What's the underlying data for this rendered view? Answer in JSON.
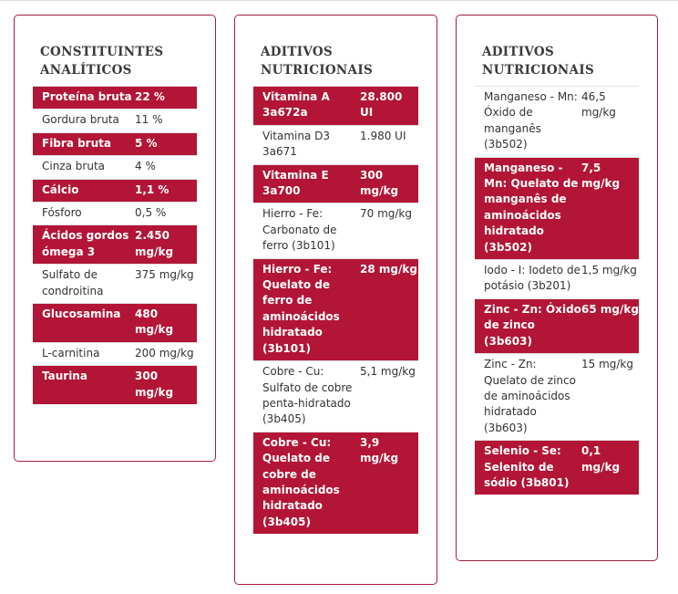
{
  "cards": [
    {
      "title_lines": [
        "CONSTITUINTES",
        "ANALÍTICOS"
      ],
      "rows": [
        {
          "name": "Proteína bruta",
          "value": "22 %",
          "highlight": true
        },
        {
          "name": "Gordura bruta",
          "value": "11 %",
          "highlight": false
        },
        {
          "name": "Fibra bruta",
          "value": "5 %",
          "highlight": true
        },
        {
          "name": "Cinza bruta",
          "value": "4 %",
          "highlight": false
        },
        {
          "name": "Cálcio",
          "value": "1,1 %",
          "highlight": true
        },
        {
          "name": "Fósforo",
          "value": "0,5 %",
          "highlight": false
        },
        {
          "name": "Ácidos gordos ómega 3",
          "value": "2.450 mg/kg",
          "highlight": true
        },
        {
          "name": "Sulfato de condroitina",
          "value": "375 mg/kg",
          "highlight": false
        },
        {
          "name": "Glucosamina",
          "value": "480 mg/kg",
          "highlight": true
        },
        {
          "name": "L-carnitina",
          "value": "200 mg/kg",
          "highlight": false
        },
        {
          "name": "Taurina",
          "value": "300 mg/kg",
          "highlight": true
        }
      ]
    },
    {
      "title_lines": [
        "ADITIVOS",
        "NUTRICIONAIS"
      ],
      "rows": [
        {
          "name": "Vitamina A 3a672a",
          "value": "28.800 UI",
          "highlight": true
        },
        {
          "name": "Vitamina D3 3a671",
          "value": "1.980 UI",
          "highlight": false
        },
        {
          "name": "Vitamina E 3a700",
          "value": "300 mg/kg",
          "highlight": true
        },
        {
          "name": "Hierro - Fe: Carbonato de ferro (3b101)",
          "value": "70 mg/kg",
          "highlight": false
        },
        {
          "name": "Hierro - Fe: Quelato de ferro de aminoácidos hidratado (3b101)",
          "value": "28 mg/kg",
          "highlight": true
        },
        {
          "name": "Cobre - Cu: Sulfato de cobre penta-hidratado (3b405)",
          "value": "5,1 mg/kg",
          "highlight": false
        },
        {
          "name": "Cobre - Cu: Quelato de cobre de aminoácidos hidratado (3b405)",
          "value": "3,9 mg/kg",
          "highlight": true
        }
      ]
    },
    {
      "title_lines": [
        "ADITIVOS",
        "NUTRICIONAIS"
      ],
      "rows": [
        {
          "name": "Manganeso - Mn: Óxido de manganês (3b502)",
          "value": "46,5 mg/kg",
          "highlight": false
        },
        {
          "name": "Manganeso - Mn: Quelato de manganês de aminoácidos hidratado (3b502)",
          "value": "7,5 mg/kg",
          "highlight": true
        },
        {
          "name": "Iodo - I: Iodeto de potásio (3b201)",
          "value": "1,5 mg/kg",
          "highlight": false
        },
        {
          "name": "Zinc - Zn: Óxido de zinco (3b603)",
          "value": "65 mg/kg",
          "highlight": true
        },
        {
          "name": "Zinc - Zn: Quelato de zinco de aminoácidos hidratado (3b603)",
          "value": "15 mg/kg",
          "highlight": false
        },
        {
          "name": "Selenio - Se: Selenito de sódio (3b801)",
          "value": "0,1 mg/kg",
          "highlight": true
        }
      ]
    }
  ]
}
